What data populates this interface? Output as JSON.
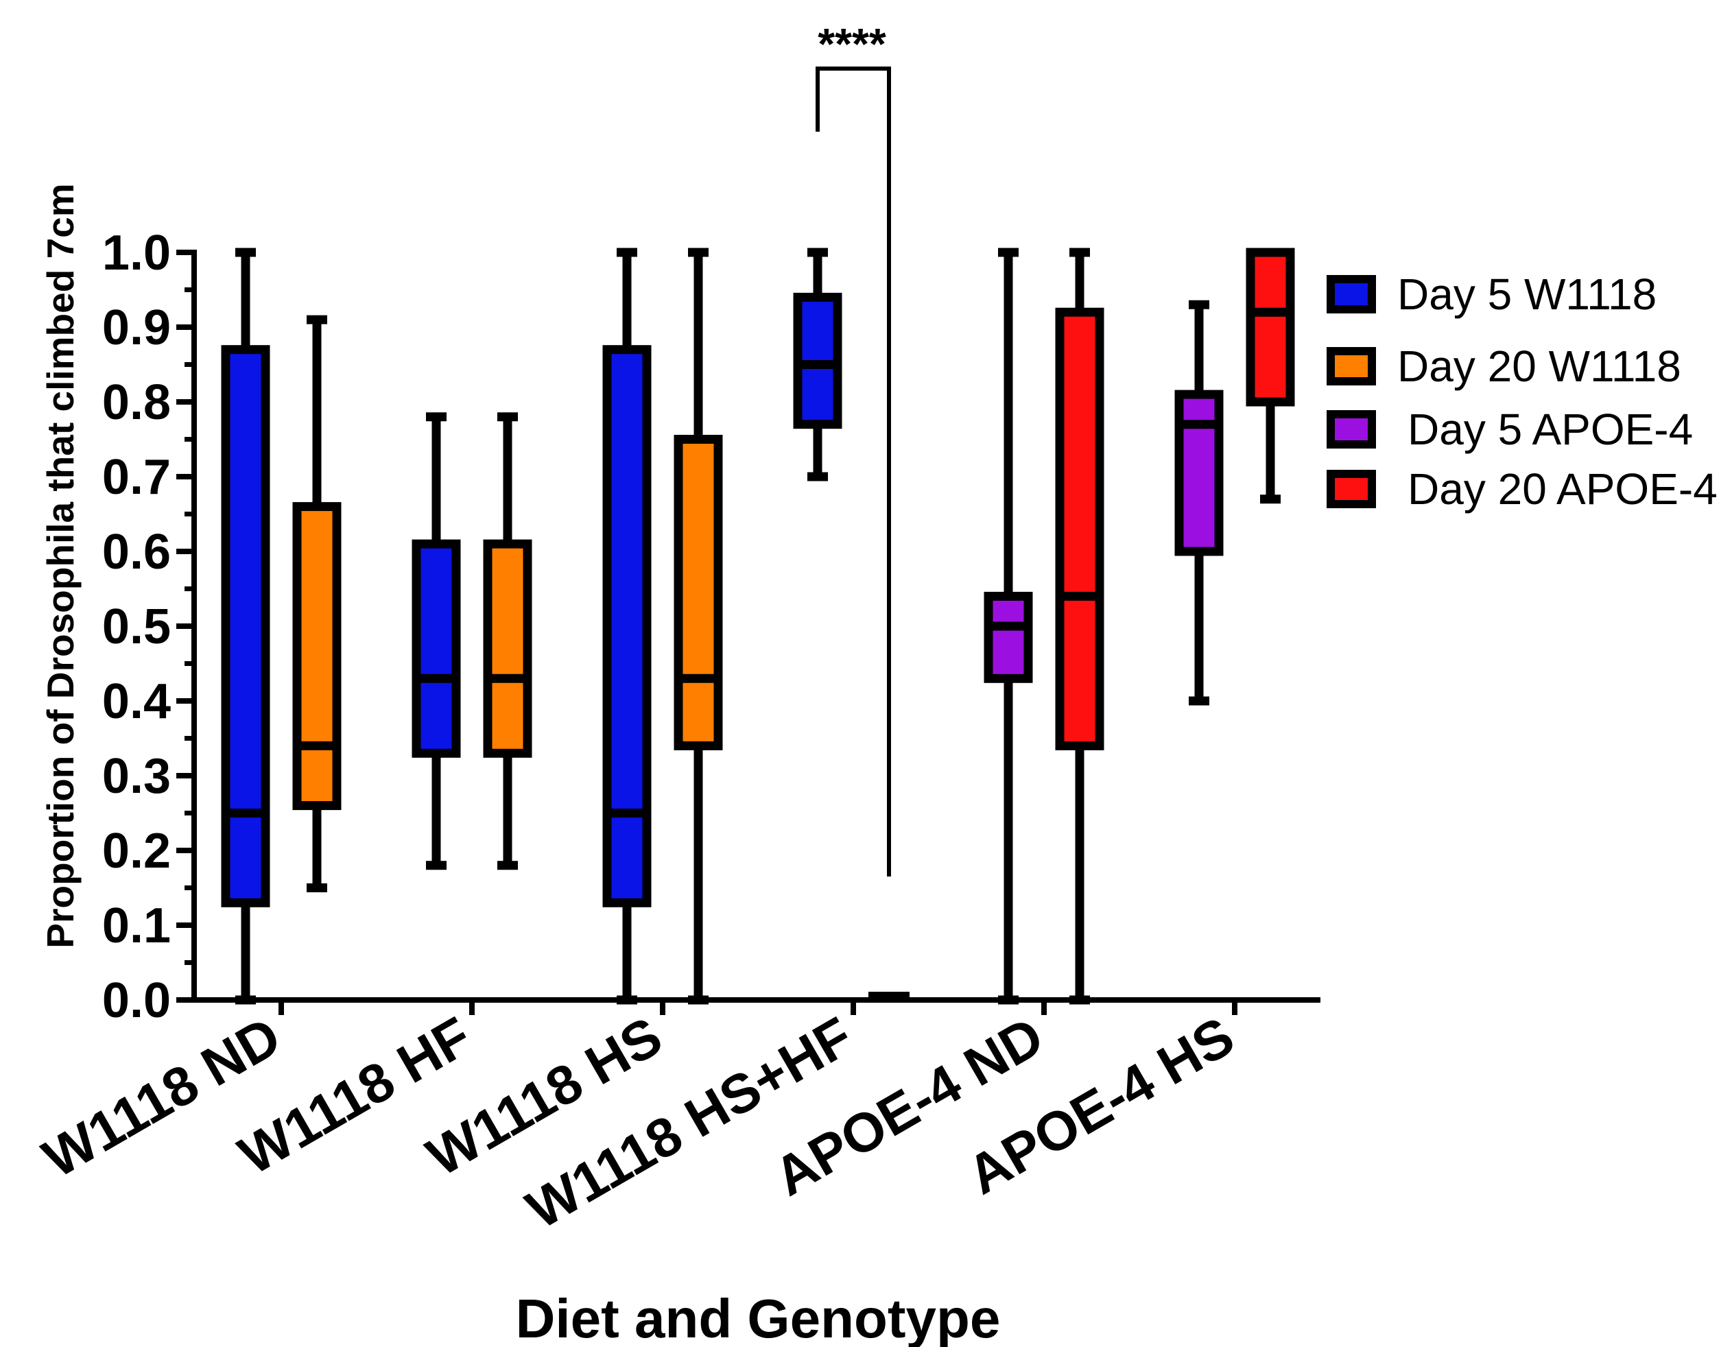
{
  "chart_data": {
    "type": "box",
    "title": "",
    "xlabel": "Diet and Genotype",
    "ylabel": "Proportion of Drosophila that climbed 7cm",
    "ylim": [
      0,
      1
    ],
    "yticks": [
      "0.0",
      "0.1",
      "0.2",
      "0.3",
      "0.4",
      "0.5",
      "0.6",
      "0.7",
      "0.8",
      "0.9",
      "1.0"
    ],
    "categories": [
      "W1118 ND",
      "W1118 HF",
      "W1118 HS",
      "W1118 HS+HF",
      "APOE-4 ND",
      "APOE-4 HS"
    ],
    "legend_position": "right",
    "legend": [
      {
        "label": "Day 5 W1118",
        "color": "#0a14e6"
      },
      {
        "label": "Day 20 W1118",
        "color": "#ff7f00"
      },
      {
        "label": "Day 5 APOE-4",
        "color": "#9b10e0"
      },
      {
        "label": "Day 20  APOE-4",
        "color": "#ff1010"
      }
    ],
    "boxes": [
      {
        "category": "W1118 ND",
        "group": "Day 5 W1118",
        "color": "#0a14e6",
        "min": 0.0,
        "q1": 0.13,
        "median": 0.25,
        "q3": 0.87,
        "max": 1.0
      },
      {
        "category": "W1118 ND",
        "group": "Day 20 W1118",
        "color": "#ff7f00",
        "min": 0.15,
        "q1": 0.26,
        "median": 0.34,
        "q3": 0.66,
        "max": 0.91
      },
      {
        "category": "W1118 HF",
        "group": "Day 5 W1118",
        "color": "#0a14e6",
        "min": 0.18,
        "q1": 0.33,
        "median": 0.43,
        "q3": 0.61,
        "max": 0.78
      },
      {
        "category": "W1118 HF",
        "group": "Day 20 W1118",
        "color": "#ff7f00",
        "min": 0.18,
        "q1": 0.33,
        "median": 0.43,
        "q3": 0.61,
        "max": 0.78
      },
      {
        "category": "W1118 HS",
        "group": "Day 5 W1118",
        "color": "#0a14e6",
        "min": 0.0,
        "q1": 0.13,
        "median": 0.25,
        "q3": 0.87,
        "max": 1.0
      },
      {
        "category": "W1118 HS",
        "group": "Day 20 W1118",
        "color": "#ff7f00",
        "min": 0.0,
        "q1": 0.34,
        "median": 0.43,
        "q3": 0.75,
        "max": 1.0
      },
      {
        "category": "W1118 HS+HF",
        "group": "Day 5 W1118",
        "color": "#0a14e6",
        "min": 0.7,
        "q1": 0.77,
        "median": 0.85,
        "q3": 0.94,
        "max": 1.0
      },
      {
        "category": "W1118 HS+HF",
        "group": "Day 20 W1118",
        "color": "#ff7f00",
        "min": 0.0,
        "q1": 0.0,
        "median": 0.0,
        "q3": 0.0,
        "max": 0.0
      },
      {
        "category": "APOE-4 ND",
        "group": "Day 5 APOE-4",
        "color": "#9b10e0",
        "min": 0.0,
        "q1": 0.43,
        "median": 0.5,
        "q3": 0.54,
        "max": 1.0
      },
      {
        "category": "APOE-4 ND",
        "group": "Day 20  APOE-4",
        "color": "#ff1010",
        "min": 0.0,
        "q1": 0.34,
        "median": 0.54,
        "q3": 0.92,
        "max": 1.0
      },
      {
        "category": "APOE-4 HS",
        "group": "Day 5 APOE-4",
        "color": "#9b10e0",
        "min": 0.4,
        "q1": 0.6,
        "median": 0.77,
        "q3": 0.81,
        "max": 0.93
      },
      {
        "category": "APOE-4 HS",
        "group": "Day 20  APOE-4",
        "color": "#ff1010",
        "min": 0.67,
        "q1": 0.8,
        "median": 0.92,
        "q3": 1.0,
        "max": 1.0
      }
    ],
    "significance": [
      {
        "label": "****",
        "between": [
          "W1118 HS+HF Day 5 W1118",
          "W1118 HS+HF Day 20 W1118"
        ]
      }
    ]
  }
}
